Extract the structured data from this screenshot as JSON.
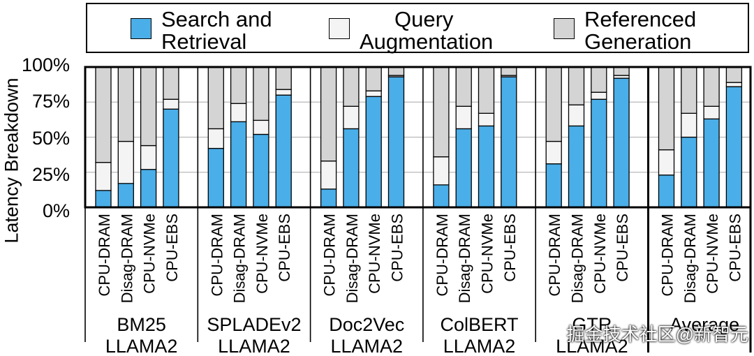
{
  "chart_data": {
    "type": "bar",
    "stacked": true,
    "ylabel": "Latency Breakdown",
    "yticks": [
      "100%",
      "75%",
      "50%",
      "25%",
      "0%"
    ],
    "ylim": [
      0,
      100
    ],
    "grid": true,
    "legend_position": "top",
    "series": [
      {
        "name": "Search and Retrieval",
        "color": "#4aaee8"
      },
      {
        "name": "Query Augmentation",
        "color": "#f4f4f4"
      },
      {
        "name": "Referenced Generation",
        "color": "#d4d4d4"
      }
    ],
    "groups": [
      {
        "line1": "BM25",
        "line2": "LLAMA2",
        "bars": [
          {
            "label": "CPU-DRAM",
            "values": [
              12,
              20,
              68
            ]
          },
          {
            "label": "Disag-DRAM",
            "values": [
              17,
              30,
              53
            ]
          },
          {
            "label": "CPU-NVMe",
            "values": [
              27,
              17,
              56
            ]
          },
          {
            "label": "CPU-EBS",
            "values": [
              70,
              7,
              23
            ]
          }
        ]
      },
      {
        "line1": "SPLADEv2",
        "line2": "LLAMA2",
        "bars": [
          {
            "label": "CPU-DRAM",
            "values": [
              42,
              14,
              44
            ]
          },
          {
            "label": "Disag-DRAM",
            "values": [
              61,
              13,
              26
            ]
          },
          {
            "label": "CPU-NVMe",
            "values": [
              52,
              10,
              38
            ]
          },
          {
            "label": "CPU-EBS",
            "values": [
              80,
              4,
              16
            ]
          }
        ]
      },
      {
        "line1": "Doc2Vec",
        "line2": "LLAMA2",
        "bars": [
          {
            "label": "CPU-DRAM",
            "values": [
              13,
              20,
              67
            ]
          },
          {
            "label": "Disag-DRAM",
            "values": [
              56,
              16,
              28
            ]
          },
          {
            "label": "CPU-NVMe",
            "values": [
              79,
              4,
              17
            ]
          },
          {
            "label": "CPU-EBS",
            "values": [
              93,
              1,
              6
            ]
          }
        ]
      },
      {
        "line1": "ColBERT",
        "line2": "LLAMA2",
        "bars": [
          {
            "label": "CPU-DRAM",
            "values": [
              16,
              20,
              64
            ]
          },
          {
            "label": "Disag-DRAM",
            "values": [
              56,
              16,
              28
            ]
          },
          {
            "label": "CPU-NVMe",
            "values": [
              58,
              9,
              33
            ]
          },
          {
            "label": "CPU-EBS",
            "values": [
              93,
              1,
              6
            ]
          }
        ]
      },
      {
        "line1": "GTR",
        "line2": "LLAMA2",
        "bars": [
          {
            "label": "CPU-DRAM",
            "values": [
              31,
              16,
              53
            ]
          },
          {
            "label": "Disag-DRAM",
            "values": [
              58,
              15,
              27
            ]
          },
          {
            "label": "CPU-NVMe",
            "values": [
              77,
              5,
              18
            ]
          },
          {
            "label": "CPU-EBS",
            "values": [
              92,
              2,
              6
            ]
          }
        ]
      },
      {
        "line1": "Average",
        "line2": "",
        "bars": [
          {
            "label": "CPU-DRAM",
            "values": [
              23,
              18,
              59
            ]
          },
          {
            "label": "Disag-DRAM",
            "values": [
              50,
              17,
              33
            ]
          },
          {
            "label": "CPU-NVMe",
            "values": [
              63,
              9,
              28
            ]
          },
          {
            "label": "CPU-EBS",
            "values": [
              86,
              3,
              11
            ]
          }
        ]
      }
    ]
  },
  "legend": {
    "item1": {
      "line1": "Search and",
      "line2": "Retrieval"
    },
    "item2": {
      "line1": "Query",
      "line2": "Augmentation"
    },
    "item3": {
      "line1": "Referenced",
      "line2": "Generation"
    }
  },
  "watermark": "掘金技术社区@新智元"
}
